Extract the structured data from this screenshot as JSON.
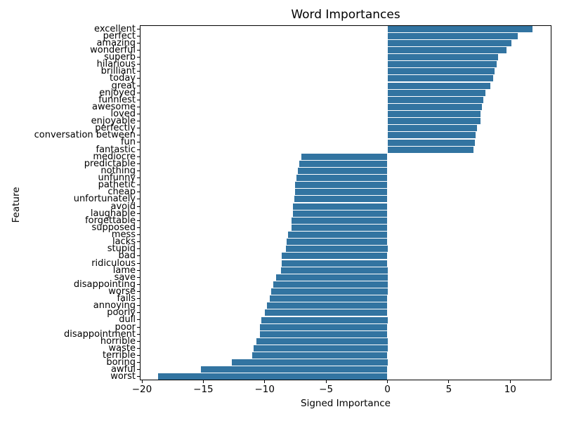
{
  "title": "Word Importances",
  "xlabel": "Signed Importance",
  "ylabel": "Feature",
  "colors": {
    "bar": "#3274a1",
    "spine": "#000000",
    "text": "#000000",
    "background": "#ffffff"
  },
  "chart_data": {
    "type": "bar",
    "orientation": "horizontal",
    "title": "Word Importances",
    "xlabel": "Signed Importance",
    "ylabel": "Feature",
    "xlim": [
      -20.17,
      13.36
    ],
    "xticks": [
      -20,
      -15,
      -10,
      -5,
      0,
      5,
      10
    ],
    "grid": false,
    "legend": null,
    "categories": [
      "excellent",
      "perfect",
      "amazing",
      "wonderful",
      "superb",
      "hilarious",
      "brilliant",
      "today",
      "great",
      "enjoyed",
      "funniest",
      "awesome",
      "loved",
      "enjoyable",
      "perfectly",
      "conversation between",
      "fun",
      "fantastic",
      "mediocre",
      "predictable",
      "nothing",
      "unfunny",
      "pathetic",
      "cheap",
      "unfortunately",
      "avoid",
      "laughable",
      "forgettable",
      "supposed",
      "mess",
      "lacks",
      "stupid",
      "bad",
      "ridiculous",
      "lame",
      "save",
      "disappointing",
      "worse",
      "fails",
      "annoying",
      "poorly",
      "dull",
      "poor",
      "disappointment",
      "horrible",
      "waste",
      "terrible",
      "boring",
      "awful",
      "worst"
    ],
    "values": [
      11.8,
      10.6,
      10.1,
      9.7,
      9.0,
      8.9,
      8.7,
      8.6,
      8.4,
      8.0,
      7.8,
      7.7,
      7.6,
      7.6,
      7.3,
      7.2,
      7.1,
      7.0,
      -7.0,
      -7.2,
      -7.3,
      -7.4,
      -7.5,
      -7.5,
      -7.6,
      -7.7,
      -7.7,
      -7.8,
      -7.8,
      -8.1,
      -8.2,
      -8.3,
      -8.6,
      -8.6,
      -8.7,
      -9.1,
      -9.3,
      -9.5,
      -9.6,
      -9.8,
      -10.0,
      -10.3,
      -10.4,
      -10.4,
      -10.7,
      -10.9,
      -11.0,
      -12.7,
      -15.2,
      -18.7
    ]
  }
}
